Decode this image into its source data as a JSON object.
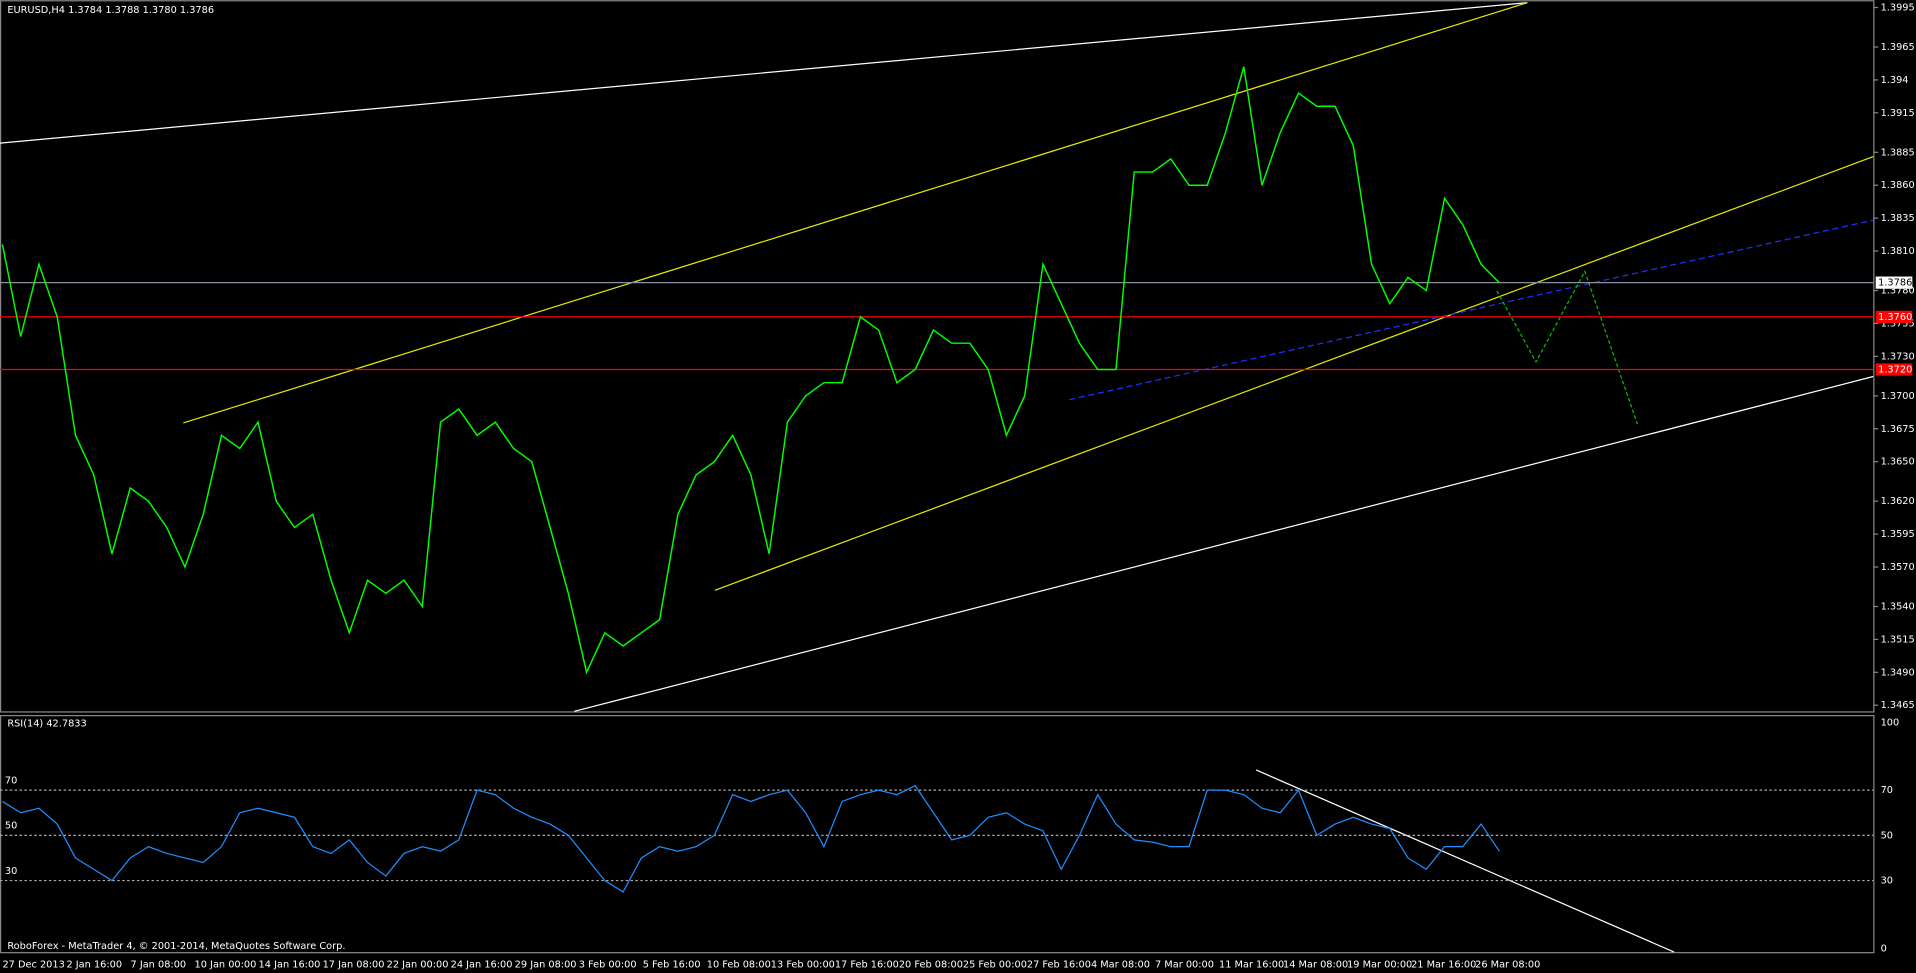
{
  "header": "EURUSD,H4  1.3784 1.3788 1.3780 1.3786",
  "price_axis": {
    "ylim": [
      1.3465,
      1.3995
    ],
    "yticks": [
      1.3995,
      1.3965,
      1.394,
      1.3915,
      1.3885,
      {
        "value": 1.386,
        "label": "1.3860"
      },
      1.3835,
      {
        "value": 1.381,
        "label": "1.3810"
      },
      {
        "value": 1.378,
        "label": "1.3780"
      },
      1.3755,
      {
        "value": 1.373,
        "label": "1.3730"
      },
      {
        "value": 1.37,
        "label": "1.3700"
      },
      1.3675,
      {
        "value": 1.365,
        "label": "1.3650"
      },
      {
        "value": 1.362,
        "label": "1.3620"
      },
      1.3595,
      {
        "value": 1.357,
        "label": "1.3570"
      },
      {
        "value": 1.354,
        "label": "1.3540"
      },
      1.3515,
      {
        "value": 1.349,
        "label": "1.3490"
      },
      1.3465
    ]
  },
  "price_tags": [
    {
      "value": 1.3786,
      "label": "1.3786",
      "color": "#ffffff"
    },
    {
      "value": 1.376,
      "label": "1.3760",
      "color": "#ff0000"
    },
    {
      "value": 1.372,
      "label": "1.3720",
      "color": "#ff0000"
    }
  ],
  "prices": {
    "color": "#00ff00",
    "values": [
      1.3815,
      1.3745,
      1.38,
      1.376,
      1.367,
      1.364,
      1.358,
      1.363,
      1.362,
      1.36,
      1.357,
      1.361,
      1.367,
      1.366,
      1.368,
      1.362,
      1.36,
      1.361,
      1.356,
      1.352,
      1.356,
      1.355,
      1.356,
      1.354,
      1.368,
      1.369,
      1.367,
      1.368,
      1.366,
      1.365,
      1.36,
      1.355,
      1.349,
      1.352,
      1.351,
      1.352,
      1.353,
      1.361,
      1.364,
      1.365,
      1.367,
      1.364,
      1.358,
      1.368,
      1.37,
      1.371,
      1.371,
      1.376,
      1.375,
      1.371,
      1.372,
      1.375,
      1.374,
      1.374,
      1.372,
      1.367,
      1.37,
      1.38,
      1.377,
      1.374,
      1.372,
      1.372,
      1.387,
      1.387,
      1.388,
      1.386,
      1.386,
      1.39,
      1.395,
      1.386,
      1.39,
      1.393,
      1.392,
      1.392,
      1.389,
      1.38,
      1.377,
      1.379,
      1.378,
      1.385,
      1.383,
      1.38,
      1.3786
    ]
  },
  "rsi": {
    "label": "RSI(14) 42.7833",
    "color": "#1e90ff",
    "ylim": [
      0,
      100
    ],
    "yticks": [
      100,
      70,
      50,
      30,
      0
    ],
    "left_ticks": [
      70,
      50,
      30
    ],
    "values": [
      65,
      60,
      62,
      55,
      40,
      35,
      30,
      40,
      45,
      42,
      40,
      38,
      45,
      60,
      62,
      60,
      58,
      45,
      42,
      48,
      38,
      32,
      42,
      45,
      43,
      48,
      70,
      68,
      62,
      58,
      55,
      50,
      40,
      30,
      25,
      40,
      45,
      43,
      45,
      50,
      68,
      65,
      68,
      70,
      60,
      45,
      65,
      68,
      70,
      68,
      72,
      60,
      48,
      50,
      58,
      60,
      55,
      52,
      35,
      50,
      68,
      55,
      48,
      47,
      45,
      45,
      70,
      70,
      68,
      62,
      60,
      70,
      50,
      55,
      58,
      55,
      53,
      40,
      35,
      45,
      45,
      55,
      43
    ]
  },
  "x_labels": [
    "27 Dec 2013",
    "2 Jan 16:00",
    "7 Jan 08:00",
    "10 Jan 00:00",
    "14 Jan 16:00",
    "17 Jan 08:00",
    "22 Jan 00:00",
    "24 Jan 16:00",
    "29 Jan 08:00",
    "3 Feb 00:00",
    "5 Feb 16:00",
    "10 Feb 08:00",
    "13 Feb 00:00",
    "17 Feb 16:00",
    "20 Feb 08:00",
    "25 Feb 00:00",
    "27 Feb 16:00",
    "4 Mar 08:00",
    "7 Mar 00:00",
    "11 Mar 16:00",
    "14 Mar 08:00",
    "19 Mar 00:00",
    "21 Mar 16:00",
    "26 Mar 08:00"
  ],
  "footer": "RoboForex - MetaTrader 4, © 2001-2014, MetaQuotes Software Corp."
}
